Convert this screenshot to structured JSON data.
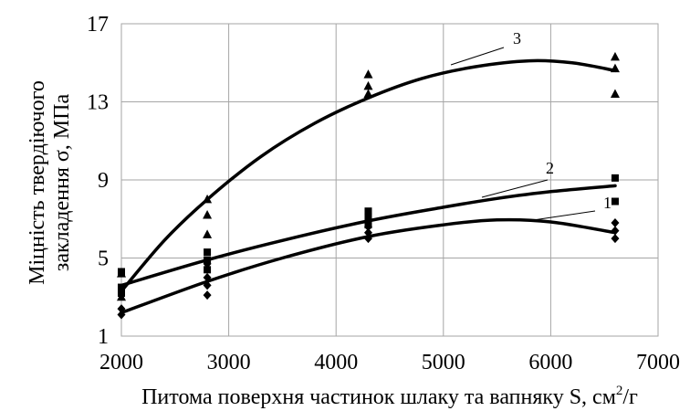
{
  "chart_data": {
    "type": "scatter",
    "xlabel": "Питома поверхня частинок шлаку та вапняку S, см²/г",
    "xlabel_main": "Питома поверхня частинок шлаку та вапняку S, см",
    "xlabel_sup": "2",
    "xlabel_tail": "/г",
    "ylabel": "Міцність твердіючого закладення σ, МПа",
    "ylabel_line1": "Міцність твердіючого",
    "ylabel_line2": "закладення σ, МПа",
    "xlim": [
      2000,
      7000
    ],
    "ylim": [
      1,
      17
    ],
    "x_ticks": [
      2000,
      3000,
      4000,
      5000,
      6000,
      7000
    ],
    "y_ticks": [
      1,
      5,
      9,
      13,
      17
    ],
    "x_tick_labels": [
      "2000",
      "3000",
      "4000",
      "5000",
      "6000",
      "7000"
    ],
    "y_tick_labels": [
      "1",
      "5",
      "9",
      "13",
      "17"
    ],
    "grid": true,
    "series": [
      {
        "name": "1",
        "marker": "diamond",
        "points": [
          [
            2000,
            2.1
          ],
          [
            2000,
            2.4
          ],
          [
            2800,
            3.1
          ],
          [
            2800,
            3.6
          ],
          [
            2800,
            4.0
          ],
          [
            2800,
            4.7
          ],
          [
            4300,
            6.0
          ],
          [
            4300,
            6.3
          ],
          [
            4300,
            6.6
          ],
          [
            6600,
            6.0
          ],
          [
            6600,
            6.4
          ],
          [
            6600,
            6.8
          ]
        ],
        "fit": [
          [
            2000,
            2.2
          ],
          [
            2800,
            3.8
          ],
          [
            3500,
            5.0
          ],
          [
            4300,
            6.1
          ],
          [
            5000,
            6.7
          ],
          [
            5500,
            6.95
          ],
          [
            6000,
            6.85
          ],
          [
            6600,
            6.3
          ]
        ]
      },
      {
        "name": "2",
        "marker": "square",
        "points": [
          [
            2000,
            3.2
          ],
          [
            2000,
            3.5
          ],
          [
            2000,
            4.3
          ],
          [
            2800,
            4.4
          ],
          [
            2800,
            4.9
          ],
          [
            2800,
            5.3
          ],
          [
            4300,
            6.7
          ],
          [
            4300,
            7.1
          ],
          [
            4300,
            7.4
          ],
          [
            6600,
            7.9
          ],
          [
            6600,
            9.1
          ]
        ],
        "fit": [
          [
            2000,
            3.6
          ],
          [
            2800,
            4.9
          ],
          [
            3500,
            5.9
          ],
          [
            4300,
            6.9
          ],
          [
            5000,
            7.6
          ],
          [
            5500,
            8.05
          ],
          [
            6000,
            8.4
          ],
          [
            6600,
            8.7
          ]
        ]
      },
      {
        "name": "3",
        "marker": "triangle",
        "points": [
          [
            2000,
            3.0
          ],
          [
            2000,
            4.2
          ],
          [
            2800,
            6.2
          ],
          [
            2800,
            7.2
          ],
          [
            2800,
            8.0
          ],
          [
            4300,
            13.4
          ],
          [
            4300,
            13.8
          ],
          [
            4300,
            14.4
          ],
          [
            6600,
            13.4
          ],
          [
            6600,
            14.7
          ],
          [
            6600,
            15.3
          ]
        ],
        "fit": [
          [
            2000,
            3.3
          ],
          [
            2400,
            5.9
          ],
          [
            2800,
            8.0
          ],
          [
            3300,
            10.2
          ],
          [
            3800,
            11.9
          ],
          [
            4300,
            13.2
          ],
          [
            4800,
            14.2
          ],
          [
            5300,
            14.8
          ],
          [
            5800,
            15.1
          ],
          [
            6200,
            15.0
          ],
          [
            6600,
            14.6
          ]
        ]
      }
    ]
  }
}
